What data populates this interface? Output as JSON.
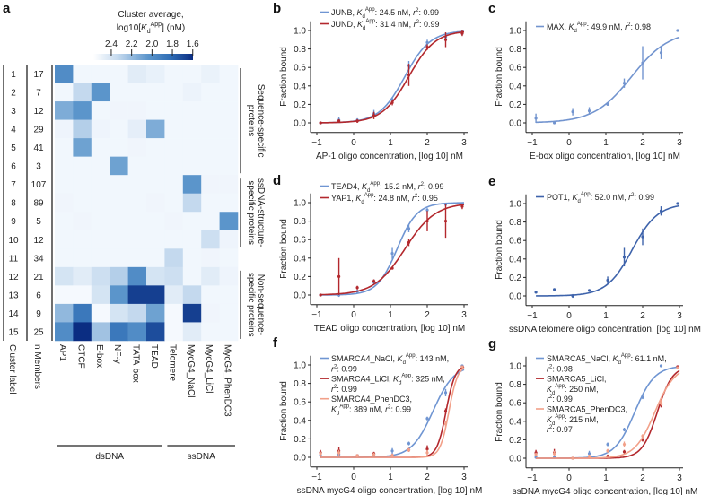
{
  "panel_labels": {
    "a": "a",
    "b": "b",
    "c": "c",
    "d": "d",
    "e": "e",
    "f": "f",
    "g": "g"
  },
  "symbols": {
    "kd": {
      "sym": "K",
      "sub": "d",
      "sup": "App"
    },
    "r2": {
      "sym": "r",
      "sup": "2"
    }
  },
  "colors": {
    "blue": "#6f95d2",
    "dark_blue": "#3e63ab",
    "red": "#b3282d",
    "salmon": "#f2a089",
    "heat_low": "#f5f9fe",
    "heat_high": "#0b2d82"
  },
  "chart_data": [
    {
      "type": "heatmap",
      "colorbar": {
        "title_line1": "Cluster average,",
        "title_line2": {
          "pre": "log10[",
          "sym": "K",
          "sub": "d",
          "sup": "App",
          "post": "] (nM)"
        },
        "ticks": [
          "2.4",
          "2.2",
          "2.0",
          "1.8",
          "1.6"
        ],
        "tick_values": [
          2.4,
          2.2,
          2.0,
          1.8,
          1.6
        ],
        "range": [
          2.5,
          1.6
        ]
      },
      "row_axis_labels": [
        "Cluster label",
        "n Members"
      ],
      "cluster_labels": [
        "1",
        "2",
        "3",
        "4",
        "5",
        "6",
        "7",
        "8",
        "9",
        "10",
        "11",
        "12",
        "13",
        "14",
        "15"
      ],
      "n_members": [
        "17",
        "7",
        "12",
        "29",
        "41",
        "3",
        "107",
        "89",
        "5",
        "12",
        "34",
        "21",
        "6",
        "9",
        "25"
      ],
      "columns": [
        "AP1",
        "CTCF",
        "E-box",
        "NF-y",
        "TATA-box",
        "TEAD",
        "Telomere",
        "MycG4_NaCl",
        "MycG4_LiCl",
        "MycG4_PhenDC3"
      ],
      "column_groups": [
        {
          "label": "dsDNA",
          "from": 0,
          "to": 5
        },
        {
          "label": "ssDNA",
          "from": 6,
          "to": 9
        }
      ],
      "row_groups": [
        {
          "line1": "Sequence-specific",
          "line2": "proteins",
          "from": 0,
          "to": 5
        },
        {
          "line1": "ssDNA-structure-",
          "line2": "specific proteins",
          "from": 6,
          "to": 9
        },
        {
          "line1": "Non-sequence-",
          "line2": "specific proteins",
          "from": 11,
          "to": 14
        }
      ],
      "values": [
        [
          1.92,
          2.48,
          2.48,
          2.48,
          2.39,
          2.43,
          2.48,
          2.48,
          2.44,
          2.48
        ],
        [
          2.48,
          2.23,
          1.96,
          2.48,
          2.48,
          2.48,
          2.48,
          2.45,
          2.48,
          2.48
        ],
        [
          2.05,
          1.96,
          2.48,
          2.47,
          2.47,
          2.48,
          2.48,
          2.48,
          2.48,
          2.48
        ],
        [
          2.46,
          2.19,
          2.46,
          2.48,
          2.41,
          2.05,
          2.48,
          2.48,
          2.48,
          2.48
        ],
        [
          2.48,
          2.01,
          2.48,
          2.48,
          2.47,
          2.48,
          2.48,
          2.48,
          2.48,
          2.48
        ],
        [
          2.48,
          2.48,
          2.48,
          2.01,
          2.48,
          2.48,
          2.48,
          2.48,
          2.48,
          2.48
        ],
        [
          2.48,
          2.48,
          2.48,
          2.48,
          2.48,
          2.48,
          2.48,
          1.96,
          2.47,
          2.47
        ],
        [
          2.47,
          2.48,
          2.48,
          2.48,
          2.48,
          2.47,
          2.48,
          2.23,
          2.48,
          2.48
        ],
        [
          2.48,
          2.47,
          2.48,
          2.48,
          2.48,
          2.48,
          2.47,
          2.48,
          2.48,
          1.96
        ],
        [
          2.48,
          2.48,
          2.48,
          2.48,
          2.48,
          2.48,
          2.48,
          2.48,
          2.28,
          2.46
        ],
        [
          2.48,
          2.48,
          2.48,
          2.48,
          2.48,
          2.48,
          2.23,
          2.48,
          2.47,
          2.48
        ],
        [
          2.32,
          2.39,
          2.28,
          2.19,
          1.92,
          2.32,
          2.28,
          2.48,
          2.39,
          2.46
        ],
        [
          2.5,
          2.5,
          2.32,
          1.96,
          1.65,
          1.65,
          2.39,
          2.23,
          2.48,
          2.48
        ],
        [
          2.1,
          1.83,
          2.5,
          2.32,
          2.23,
          2.01,
          2.5,
          1.65,
          2.47,
          2.48
        ],
        [
          1.92,
          1.6,
          2.14,
          1.83,
          1.92,
          1.69,
          2.5,
          2.39,
          2.48,
          2.48
        ]
      ]
    },
    {
      "panel": "b",
      "type": "line",
      "xlabel": "AP-1 oligo concentration, [log 10] nM",
      "ylabel": "Fraction bound",
      "xlim": [
        -1.1,
        3.1
      ],
      "ylim": [
        -0.1,
        1.1
      ],
      "xticks": [
        "−1",
        "0",
        "1",
        "2",
        "3"
      ],
      "yticks": [
        "0.0",
        "0.2",
        "0.4",
        "0.6",
        "0.8",
        "1.0"
      ],
      "x": [
        -0.9,
        -0.4,
        0.1,
        0.55,
        1.05,
        1.5,
        2.0,
        2.5,
        2.95
      ],
      "series": [
        {
          "name": "JUNB",
          "kd": "24.5 nM",
          "r2": "0.99",
          "color": "#6f95d2",
          "y": [
            0,
            0.03,
            0.03,
            0.1,
            0.25,
            0.62,
            0.87,
            0.93,
            0.97
          ],
          "err": [
            0.01,
            0.03,
            0.02,
            0.04,
            0.03,
            0.05,
            0.03,
            0.05,
            0.02
          ]
        },
        {
          "name": "JUND",
          "kd": "31.4 nM",
          "r2": "0.99",
          "color": "#b3282d",
          "y": [
            0,
            0.02,
            0.02,
            0.08,
            0.22,
            0.52,
            0.82,
            0.9,
            0.97
          ],
          "err": [
            0.01,
            0.02,
            0.02,
            0.04,
            0.03,
            0.12,
            0.03,
            0.08,
            0.03
          ]
        }
      ]
    },
    {
      "panel": "c",
      "type": "line",
      "xlabel": "E-box oligo concentration, [log 10] nM",
      "ylabel": "Fraction bound",
      "xlim": [
        -1.1,
        3.1
      ],
      "ylim": [
        -0.1,
        1.1
      ],
      "xticks": [
        "−1",
        "0",
        "1",
        "2",
        "3"
      ],
      "yticks": [
        "0.0",
        "0.2",
        "0.4",
        "0.6",
        "0.8",
        "1.0"
      ],
      "x": [
        -0.9,
        -0.4,
        0.1,
        0.55,
        1.05,
        1.5,
        2.0,
        2.5,
        2.95
      ],
      "series": [
        {
          "name": "MAX",
          "kd": "49.9 nM",
          "r2": "0.98",
          "color": "#7294cf",
          "y": [
            0.05,
            0,
            0.12,
            0.13,
            0.2,
            0.43,
            0.65,
            0.76,
            1.0
          ],
          "err": [
            0.05,
            0,
            0.04,
            0.04,
            0,
            0.05,
            0.18,
            0.07,
            0
          ]
        }
      ]
    },
    {
      "panel": "d",
      "type": "line",
      "xlabel": "TEAD oligo concentration, [log 10] nM",
      "ylabel": "Fraction bound",
      "xlim": [
        -1.1,
        3.1
      ],
      "ylim": [
        -0.1,
        1.1
      ],
      "xticks": [
        "−1",
        "0",
        "1",
        "2",
        "3"
      ],
      "yticks": [
        "0.0",
        "0.2",
        "0.4",
        "0.6",
        "0.8",
        "1.0"
      ],
      "x": [
        -0.9,
        -0.4,
        0.1,
        0.55,
        1.05,
        1.5,
        2.0,
        2.5,
        2.95
      ],
      "series": [
        {
          "name": "TEAD4",
          "kd": "15.2 nM",
          "r2": "0.99",
          "color": "#6f95d2",
          "y": [
            0,
            0,
            0.04,
            0.14,
            0.45,
            0.72,
            0.92,
            0.98,
            0.99
          ],
          "err": [
            0.01,
            0.02,
            0.02,
            0.03,
            0.06,
            0.04,
            0.02,
            0.01,
            0.01
          ]
        },
        {
          "name": "YAP1",
          "kd": "24.8 nM",
          "r2": "0.95",
          "color": "#b3282d",
          "y": [
            0,
            0.2,
            0.08,
            0.15,
            0.29,
            0.57,
            0.8,
            0.8,
            0.96
          ],
          "err": [
            0.01,
            0.2,
            0.02,
            0.02,
            0,
            0.04,
            0.11,
            0.18,
            0.03
          ]
        }
      ]
    },
    {
      "panel": "e",
      "type": "line",
      "xlabel": "ssDNA telomere oligo concentration, [log 10] nM",
      "ylabel": "Fraction bound",
      "xlim": [
        -1.1,
        3.1
      ],
      "ylim": [
        -0.1,
        1.1
      ],
      "xticks": [
        "−1",
        "0",
        "1",
        "2",
        "3"
      ],
      "yticks": [
        "0.0",
        "0.2",
        "0.4",
        "0.6",
        "0.8",
        "1.0"
      ],
      "x": [
        -0.9,
        -0.4,
        0.1,
        0.55,
        1.05,
        1.5,
        2.0,
        2.5,
        2.95
      ],
      "series": [
        {
          "name": "POT1",
          "kd": "52.0 nM",
          "r2": "0.99",
          "color": "#3e63ab",
          "y": [
            0.04,
            0.07,
            0,
            0.06,
            0.17,
            0.42,
            0.64,
            0.92,
            1.0
          ],
          "err": [
            0,
            0,
            0.02,
            0,
            0.04,
            0.1,
            0.09,
            0.05,
            0
          ]
        }
      ]
    },
    {
      "panel": "f",
      "type": "line",
      "xlabel": "ssDNA mycG4 oligo concentration, [log 10] nM",
      "ylabel": "Fraction bound",
      "xlim": [
        -1.1,
        3.1
      ],
      "ylim": [
        -0.1,
        1.1
      ],
      "xticks": [
        "−1",
        "0",
        "1",
        "2",
        "3"
      ],
      "yticks": [
        "0.0",
        "0.2",
        "0.4",
        "0.6",
        "0.8",
        "1.0"
      ],
      "x": [
        -0.9,
        -0.4,
        0.1,
        0.55,
        1.05,
        1.5,
        2.0,
        2.5,
        2.95
      ],
      "series": [
        {
          "name": "SMARCA4_NaCl",
          "kd": "143 nM",
          "r2": "0.99",
          "color": "#6f95d2",
          "y": [
            0.02,
            0.03,
            0.02,
            0.03,
            0.07,
            0.15,
            0.42,
            0.7,
            0.99
          ],
          "err": [
            0.02,
            0.03,
            0.01,
            0.02,
            0.03,
            0.02,
            0.02,
            0.04,
            0.01
          ]
        },
        {
          "name": "SMARCA4_LiCl",
          "kd": "325 nM",
          "r2": "0.99",
          "color": "#b3282d",
          "y": [
            0.05,
            0.07,
            0.02,
            0.04,
            0.02,
            0.08,
            0.09,
            0.5,
            0.98
          ],
          "err": [
            0.03,
            0.04,
            0.01,
            0.02,
            0.02,
            0.02,
            0.04,
            0.03,
            0.01
          ]
        },
        {
          "name": "SMARCA4_PhenDC3",
          "kd": "389 nM",
          "r2": "0.99",
          "color": "#f2a089",
          "y": [
            0.04,
            0.05,
            0.02,
            0.03,
            0.02,
            0.08,
            0.05,
            0.36,
            0.98
          ],
          "err": [
            0.02,
            0.03,
            0.01,
            0.02,
            0.02,
            0.02,
            0.03,
            0.03,
            0.01
          ]
        }
      ]
    },
    {
      "panel": "g",
      "type": "line",
      "xlabel": "ssDNA mycG4 oligo concentration, [log 10] nM",
      "ylabel": "Fraction bound",
      "xlim": [
        -1.1,
        3.1
      ],
      "ylim": [
        -0.1,
        1.1
      ],
      "xticks": [
        "−1",
        "0",
        "1",
        "2",
        "3"
      ],
      "yticks": [
        "0.0",
        "0.2",
        "0.4",
        "0.6",
        "0.8",
        "1.0"
      ],
      "x": [
        -0.9,
        -0.4,
        0.1,
        0.55,
        1.05,
        1.5,
        2.0,
        2.5,
        2.95
      ],
      "series": [
        {
          "name": "SMARCA5_NaCl",
          "kd": "61.1 nM",
          "r2": "0.98",
          "color": "#6f95d2",
          "y": [
            0.01,
            0.01,
            0,
            0.05,
            0.15,
            0.31,
            0.66,
            1.0,
            0.99
          ],
          "err": [
            0.01,
            0.01,
            0.01,
            0.03,
            0.02,
            0.02,
            0.02,
            0.01,
            0.01
          ]
        },
        {
          "name": "SMARCA5_LiCl",
          "kd": "250 nM",
          "r2": "0.99",
          "color": "#b3282d",
          "y": [
            0.06,
            0.06,
            0,
            0.01,
            0.02,
            0.07,
            0.2,
            0.58,
            0.99
          ],
          "err": [
            0.03,
            0.04,
            0.01,
            0.01,
            0.02,
            0.02,
            0.02,
            0.03,
            0.01
          ]
        },
        {
          "name": "SMARCA5_PhenDC3",
          "kd": "215 nM",
          "r2": "0.97",
          "color": "#f2a089",
          "y": [
            0.04,
            0.05,
            0,
            0.02,
            0.08,
            0.15,
            0.24,
            0.6,
            0.98
          ],
          "err": [
            0.02,
            0.03,
            0.01,
            0.02,
            0.02,
            0.03,
            0.02,
            0.03,
            0.01
          ]
        }
      ]
    }
  ]
}
